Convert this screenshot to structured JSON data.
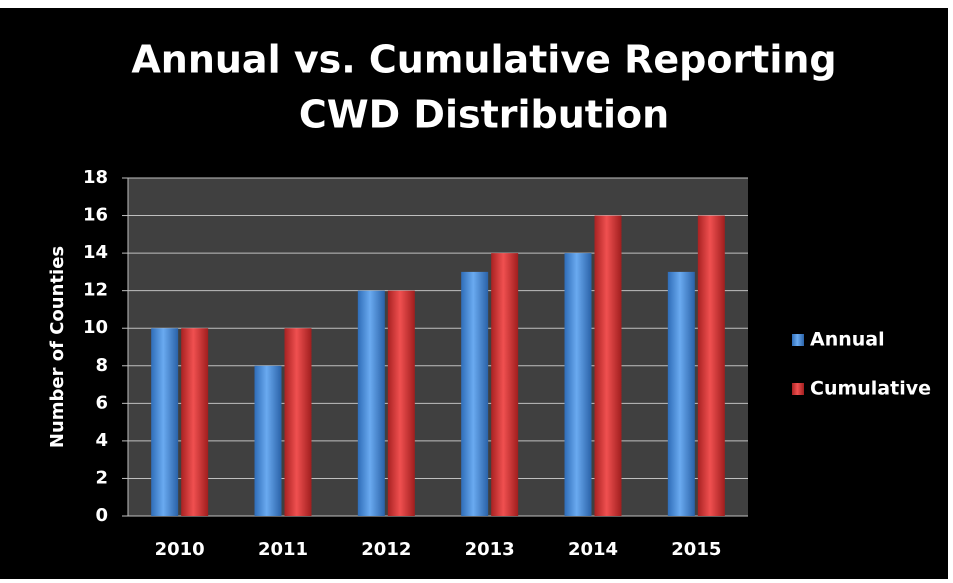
{
  "chart_data": {
    "type": "bar",
    "title": [
      "Annual vs. Cumulative Reporting",
      "CWD Distribution"
    ],
    "y_label": "Number of Counties",
    "categories": [
      "2010",
      "2011",
      "2012",
      "2013",
      "2014",
      "2015"
    ],
    "series": [
      {
        "name": "Annual",
        "color": "#4a8fdc",
        "values": [
          10,
          8,
          12,
          13,
          14,
          13
        ]
      },
      {
        "name": "Cumulative",
        "color": "#d83434",
        "values": [
          10,
          10,
          12,
          14,
          16,
          16
        ]
      }
    ],
    "ylim": [
      0,
      18
    ],
    "yticks": [
      0,
      2,
      4,
      6,
      8,
      10,
      12,
      14,
      16,
      18
    ],
    "grid": true,
    "legend": "right"
  }
}
